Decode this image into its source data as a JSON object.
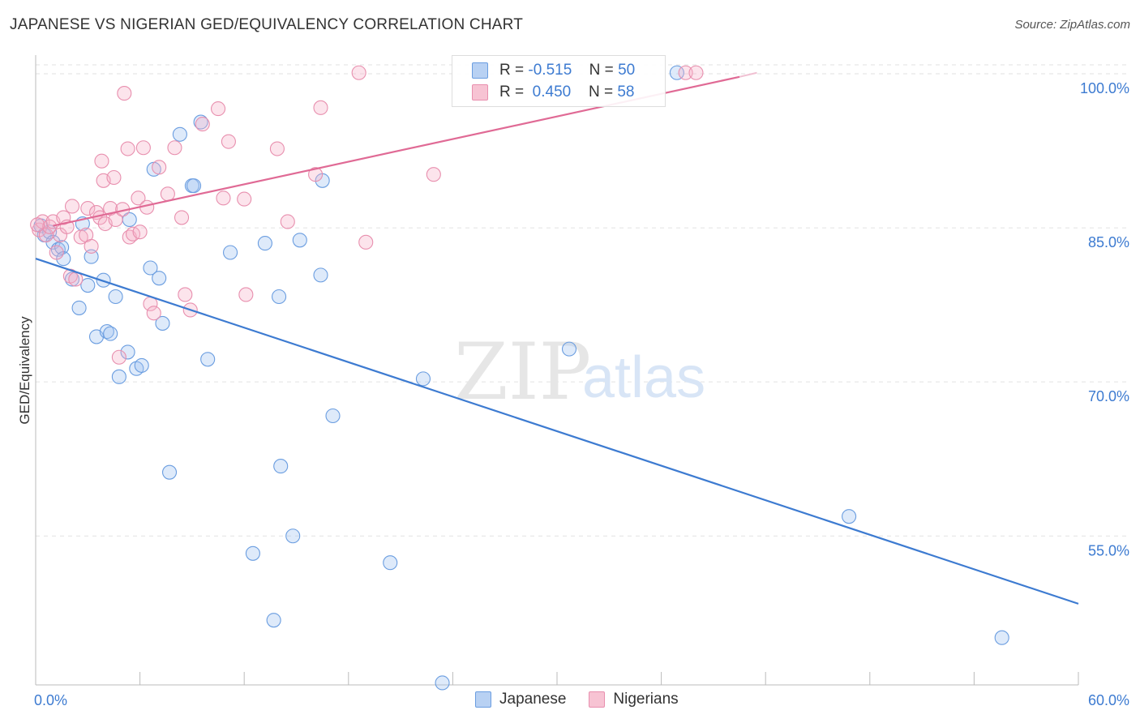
{
  "title": "JAPANESE VS NIGERIAN GED/EQUIVALENCY CORRELATION CHART",
  "source": "Source: ZipAtlas.com",
  "watermark": {
    "zip": "ZIP",
    "atlas": "atlas"
  },
  "legend": {
    "japanese": {
      "r_label": "R =",
      "r_value": "-0.515",
      "n_label": "N =",
      "n_value": "50"
    },
    "nigerian": {
      "r_label": "R =",
      "r_value": "0.450",
      "n_label": "N =",
      "n_value": "58"
    }
  },
  "bottom_legend": {
    "japanese": "Japanese",
    "nigerian": "Nigerians"
  },
  "colors": {
    "japanese": "#6a9de0",
    "nigerian": "#e88fae",
    "japanese_line": "#3d7bd1",
    "nigerian_line": "#e06a95",
    "tick_label": "#3d7bd1"
  },
  "chart_data": {
    "type": "scatter",
    "title": "JAPANESE VS NIGERIAN GED/EQUIVALENCY CORRELATION CHART",
    "xlabel": "",
    "ylabel": "GED/Equivalency",
    "xlim": [
      0,
      60
    ],
    "ylim": [
      40.5,
      101.5
    ],
    "x_tick_labels": [
      "0.0%",
      "60.0%"
    ],
    "y_ticks": [
      55,
      70,
      85,
      100
    ],
    "y_tick_labels": [
      "55.0%",
      "70.0%",
      "85.0%",
      "100.0%"
    ],
    "grid": true,
    "legend_position": "top-center",
    "series": [
      {
        "name": "Japanese",
        "r": -0.515,
        "n": 50,
        "trend": {
          "x": [
            0,
            60
          ],
          "y": [
            82.0,
            48.4
          ]
        },
        "points": [
          [
            0.3,
            85.2
          ],
          [
            0.5,
            84.3
          ],
          [
            0.8,
            84.6
          ],
          [
            1.0,
            83.6
          ],
          [
            1.3,
            82.9
          ],
          [
            1.5,
            83.1
          ],
          [
            1.6,
            82.0
          ],
          [
            2.1,
            80.0
          ],
          [
            2.5,
            77.2
          ],
          [
            2.7,
            85.4
          ],
          [
            3.0,
            79.4
          ],
          [
            3.2,
            82.2
          ],
          [
            3.5,
            74.4
          ],
          [
            3.9,
            79.9
          ],
          [
            4.1,
            74.9
          ],
          [
            4.3,
            74.7
          ],
          [
            4.6,
            78.3
          ],
          [
            4.8,
            70.5
          ],
          [
            5.3,
            72.9
          ],
          [
            5.4,
            85.8
          ],
          [
            5.8,
            71.3
          ],
          [
            6.1,
            71.6
          ],
          [
            6.6,
            81.1
          ],
          [
            6.8,
            90.7
          ],
          [
            7.1,
            80.1
          ],
          [
            7.3,
            75.7
          ],
          [
            7.7,
            61.2
          ],
          [
            8.3,
            94.1
          ],
          [
            9.0,
            89.1
          ],
          [
            9.1,
            89.1
          ],
          [
            9.5,
            95.3
          ],
          [
            9.9,
            72.2
          ],
          [
            11.2,
            82.6
          ],
          [
            12.5,
            53.3
          ],
          [
            13.2,
            83.5
          ],
          [
            13.7,
            46.8
          ],
          [
            14.0,
            78.3
          ],
          [
            14.1,
            61.8
          ],
          [
            14.8,
            55.0
          ],
          [
            15.2,
            83.8
          ],
          [
            16.4,
            80.4
          ],
          [
            16.5,
            89.6
          ],
          [
            17.1,
            66.7
          ],
          [
            20.4,
            52.4
          ],
          [
            22.3,
            70.3
          ],
          [
            23.4,
            40.7
          ],
          [
            30.7,
            73.2
          ],
          [
            36.9,
            100.1
          ],
          [
            46.8,
            56.9
          ],
          [
            55.6,
            45.1
          ]
        ]
      },
      {
        "name": "Nigerians",
        "r": 0.45,
        "n": 58,
        "trend": {
          "x": [
            1.0,
            40.5
          ],
          "y": [
            85.2,
            99.7
          ]
        },
        "points": [
          [
            0.2,
            84.8
          ],
          [
            0.4,
            85.6
          ],
          [
            0.6,
            84.3
          ],
          [
            0.8,
            85.1
          ],
          [
            1.0,
            85.6
          ],
          [
            1.2,
            82.6
          ],
          [
            1.4,
            84.3
          ],
          [
            1.6,
            86.0
          ],
          [
            1.8,
            85.1
          ],
          [
            2.0,
            80.3
          ],
          [
            2.1,
            87.1
          ],
          [
            2.3,
            80.0
          ],
          [
            2.6,
            84.1
          ],
          [
            2.9,
            84.3
          ],
          [
            3.0,
            86.9
          ],
          [
            3.2,
            83.2
          ],
          [
            3.5,
            86.5
          ],
          [
            3.7,
            86.0
          ],
          [
            3.8,
            91.5
          ],
          [
            3.9,
            89.6
          ],
          [
            4.0,
            85.4
          ],
          [
            4.3,
            86.9
          ],
          [
            4.5,
            89.9
          ],
          [
            4.6,
            85.8
          ],
          [
            4.8,
            72.4
          ],
          [
            5.0,
            86.8
          ],
          [
            5.1,
            98.1
          ],
          [
            5.3,
            92.7
          ],
          [
            5.4,
            84.1
          ],
          [
            5.6,
            84.4
          ],
          [
            5.9,
            87.9
          ],
          [
            6.0,
            84.6
          ],
          [
            6.2,
            92.8
          ],
          [
            6.4,
            87.0
          ],
          [
            6.6,
            77.6
          ],
          [
            6.8,
            76.7
          ],
          [
            7.1,
            90.9
          ],
          [
            7.6,
            88.3
          ],
          [
            8.0,
            92.8
          ],
          [
            8.4,
            86.0
          ],
          [
            8.6,
            78.5
          ],
          [
            8.9,
            77.0
          ],
          [
            9.6,
            95.1
          ],
          [
            10.5,
            96.6
          ],
          [
            10.8,
            87.9
          ],
          [
            11.1,
            93.4
          ],
          [
            12.0,
            87.8
          ],
          [
            12.1,
            78.5
          ],
          [
            13.9,
            92.7
          ],
          [
            14.5,
            85.6
          ],
          [
            16.1,
            90.2
          ],
          [
            16.4,
            96.7
          ],
          [
            18.6,
            100.1
          ],
          [
            19.0,
            83.6
          ],
          [
            22.9,
            90.2
          ],
          [
            37.4,
            100.1
          ],
          [
            38.0,
            100.1
          ],
          [
            0.1,
            85.3
          ]
        ]
      }
    ]
  }
}
